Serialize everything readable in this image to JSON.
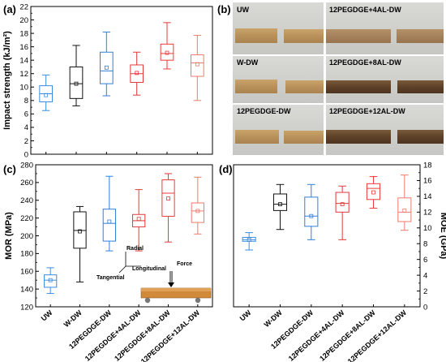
{
  "colors": [
    "#3a8de0",
    "#111111",
    "#2f7fd8",
    "#e03a3a",
    "#ee3a3a",
    "#f07a6a"
  ],
  "panel_labels": {
    "a": "(a)",
    "b": "(b)",
    "c": "(c)",
    "d": "(d)"
  },
  "photo_labels": [
    "UW",
    "12PEGDGE+4AL-DW",
    "W-DW",
    "12PEGDGE+8AL-DW",
    "12PEGDGE-DW",
    "12PEGDGE+12AL-DW"
  ],
  "annotation": {
    "radial": "Radial",
    "longitudinal": "Longitudinal",
    "tangential": "Tangential",
    "force": "Force"
  },
  "chart_data": [
    {
      "type": "box",
      "panel": "a",
      "ylabel": "Impact strength (kJ/m²)",
      "ylim": [
        0,
        22
      ],
      "yticks": [
        0,
        2,
        4,
        6,
        8,
        10,
        12,
        14,
        16,
        18,
        20,
        22
      ],
      "categories": [
        "UW",
        "W-DW",
        "12PEGDGE-DW",
        "12PEGDGE+4AL-DW",
        "12PEGDGE+8AL-DW",
        "12PEGDGE+12AL-DW"
      ],
      "boxes": [
        {
          "min": 6.5,
          "q1": 7.8,
          "median": 9.0,
          "q3": 10.2,
          "max": 11.8,
          "mean": 8.8
        },
        {
          "min": 7.2,
          "q1": 8.3,
          "median": 10.5,
          "q3": 13.0,
          "max": 16.2,
          "mean": 10.5
        },
        {
          "min": 8.7,
          "q1": 10.5,
          "median": 12.4,
          "q3": 15.2,
          "max": 18.2,
          "mean": 12.9
        },
        {
          "min": 8.8,
          "q1": 10.7,
          "median": 12.0,
          "q3": 13.3,
          "max": 15.2,
          "mean": 12.1
        },
        {
          "min": 12.7,
          "q1": 14.0,
          "median": 15.0,
          "q3": 16.4,
          "max": 19.6,
          "mean": 15.1
        },
        {
          "min": 8.0,
          "q1": 11.6,
          "median": 13.6,
          "q3": 14.8,
          "max": 17.7,
          "mean": 13.4
        }
      ]
    },
    {
      "type": "box",
      "panel": "c",
      "ylabel": "MOR (MPa)",
      "ylim": [
        120,
        280
      ],
      "yticks": [
        120,
        140,
        160,
        180,
        200,
        220,
        240,
        260,
        280
      ],
      "categories": [
        "UW",
        "W-DW",
        "12PEGDGE-DW",
        "12PEGDGE+4AL-DW",
        "12PEGDGE+8AL-DW",
        "12PEGDGE+12AL-DW"
      ],
      "boxes": [
        {
          "min": 135,
          "q1": 142,
          "median": 150,
          "q3": 156,
          "max": 164,
          "mean": 150
        },
        {
          "min": 148,
          "q1": 186,
          "median": 206,
          "q3": 227,
          "max": 233,
          "mean": 205
        },
        {
          "min": 183,
          "q1": 194,
          "median": 214,
          "q3": 230,
          "max": 267,
          "mean": 216
        },
        {
          "min": 183,
          "q1": 210,
          "median": 217,
          "q3": 224,
          "max": 252,
          "mean": 219
        },
        {
          "min": 193,
          "q1": 222,
          "median": 248,
          "q3": 263,
          "max": 270,
          "mean": 242
        },
        {
          "min": 202,
          "q1": 215,
          "median": 228,
          "q3": 237,
          "max": 266,
          "mean": 228
        }
      ]
    },
    {
      "type": "box",
      "panel": "d",
      "ylabel": "MOE (GPa)",
      "ylim": [
        0,
        18
      ],
      "yticks": [
        0,
        2,
        4,
        6,
        8,
        10,
        12,
        14,
        16,
        18
      ],
      "categories": [
        "UW",
        "W-DW",
        "12PEGDGE-DW",
        "12PEGDGE+4AL-DW",
        "12PEGDGE+8AL-DW",
        "12PEGDGE+12AL-DW"
      ],
      "boxes": [
        {
          "min": 7.2,
          "q1": 8.3,
          "median": 8.5,
          "q3": 8.8,
          "max": 9.4,
          "mean": 8.5
        },
        {
          "min": 9.8,
          "q1": 12.2,
          "median": 13.0,
          "q3": 14.3,
          "max": 15.5,
          "mean": 13.0
        },
        {
          "min": 8.5,
          "q1": 10.2,
          "median": 11.5,
          "q3": 13.9,
          "max": 15.5,
          "mean": 11.5
        },
        {
          "min": 8.5,
          "q1": 12.0,
          "median": 13.1,
          "q3": 14.5,
          "max": 15.3,
          "mean": 13.0
        },
        {
          "min": 12.5,
          "q1": 13.6,
          "median": 15.0,
          "q3": 15.6,
          "max": 16.5,
          "mean": 14.5
        },
        {
          "min": 9.7,
          "q1": 10.8,
          "median": 12.0,
          "q3": 13.8,
          "max": 16.7,
          "mean": 12.2
        }
      ]
    }
  ]
}
